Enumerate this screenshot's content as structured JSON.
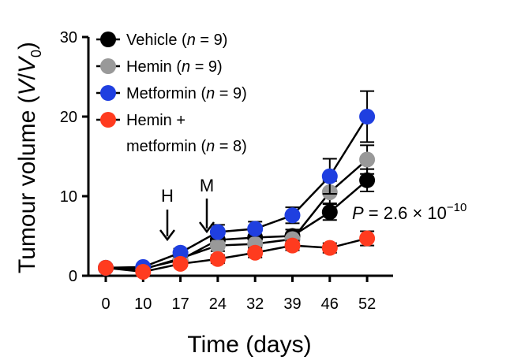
{
  "chart_data": {
    "type": "line",
    "xlabel": "Time (days)",
    "ylabel_main": "Tumour volume (",
    "ylabel_v": "V",
    "ylabel_slash": "/",
    "ylabel_v0": "V",
    "ylabel_sub": "0",
    "ylabel_close": ")",
    "ylim": [
      0,
      30
    ],
    "yticks": [
      "0",
      "10",
      "20",
      "30"
    ],
    "x_categories": [
      "0",
      "10",
      "17",
      "24",
      "32",
      "39",
      "46",
      "52"
    ],
    "error_bars": true,
    "legend_placement": "top-left",
    "series": [
      {
        "name": "Vehicle",
        "n_label": "n",
        "n_value": " = 9)",
        "name_prefix": "Vehicle (",
        "color": "#000000",
        "values": [
          1.0,
          0.9,
          2.0,
          4.5,
          4.8,
          5.0,
          8.0,
          12.0
        ],
        "errors": [
          0.2,
          0.2,
          0.4,
          0.8,
          0.8,
          0.8,
          1.0,
          1.4
        ]
      },
      {
        "name": "Hemin",
        "n_label": "n",
        "n_value": " = 9)",
        "name_prefix": "Hemin (",
        "color": "#999999",
        "values": [
          1.0,
          0.8,
          2.2,
          3.8,
          4.0,
          4.6,
          10.5,
          14.6
        ],
        "errors": [
          0.2,
          0.2,
          0.4,
          0.7,
          0.8,
          0.8,
          1.4,
          1.8
        ]
      },
      {
        "name": "Metformin",
        "n_label": "n",
        "n_value": " = 9)",
        "name_prefix": "Metformin (",
        "color": "#1f3fe0",
        "values": [
          1.0,
          1.1,
          2.9,
          5.5,
          5.9,
          7.6,
          12.5,
          20.0
        ],
        "errors": [
          0.2,
          0.3,
          0.5,
          0.9,
          0.9,
          1.0,
          2.2,
          3.2
        ]
      },
      {
        "name_line1": "Hemin +",
        "name_line2_prefix": "metformin (",
        "n_label": "n",
        "n_value": " = 8)",
        "color": "#ff3b1f",
        "values": [
          1.0,
          0.5,
          1.5,
          2.1,
          2.9,
          3.8,
          3.5,
          4.7
        ],
        "errors": [
          0.2,
          0.2,
          0.3,
          0.5,
          0.6,
          0.6,
          0.6,
          0.9
        ]
      }
    ],
    "annotations": {
      "h_label": "H",
      "m_label": "M",
      "p_label": "P",
      "p_value": " = 2.6 × 10",
      "p_exponent": "−10"
    }
  }
}
